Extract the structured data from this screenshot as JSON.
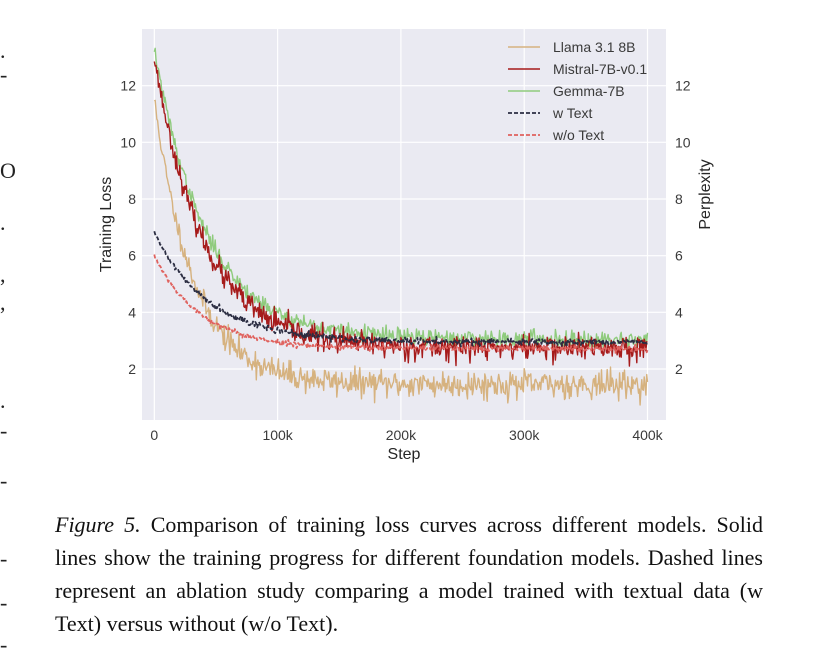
{
  "chart_data": {
    "type": "line",
    "xlabel": "Step",
    "ylabel": "Training Loss",
    "ylabel_right": "Perplexity",
    "xlim": [
      -10000,
      415000
    ],
    "ylim": [
      0.2,
      14.0
    ],
    "xticks": [
      0,
      100000,
      200000,
      300000,
      400000
    ],
    "xtick_labels": [
      "0",
      "100k",
      "200k",
      "300k",
      "400k"
    ],
    "yticks": [
      2,
      4,
      6,
      8,
      10,
      12
    ],
    "ytick_labels": [
      "2",
      "4",
      "6",
      "8",
      "10",
      "12"
    ],
    "grid": true,
    "legend_position": "top-right",
    "series": [
      {
        "name": "Llama 3.1 8B",
        "color": "#d6b27f",
        "dash": "solid",
        "start": 11.5,
        "end": 1.45,
        "tau": 32000,
        "noise": 0.24,
        "seed": 11
      },
      {
        "name": "Mistral-7B-v0.1",
        "color": "#a61b1b",
        "dash": "solid",
        "start": 13.0,
        "end": 2.75,
        "tau": 40000,
        "noise": 0.22,
        "seed": 23
      },
      {
        "name": "Gemma-7B",
        "color": "#8fcb7d",
        "dash": "solid",
        "start": 13.3,
        "end": 3.05,
        "tau": 42000,
        "noise": 0.16,
        "seed": 37
      },
      {
        "name": "w Text",
        "color": "#2b2d42",
        "dash": "dashed",
        "start": 6.8,
        "end": 2.95,
        "tau": 45000,
        "noise": 0.06,
        "seed": 41
      },
      {
        "name": "w/o Text",
        "color": "#e0625e",
        "dash": "dashed",
        "start": 6.0,
        "end": 2.72,
        "tau": 38000,
        "noise": 0.05,
        "seed": 53
      }
    ]
  },
  "caption": {
    "label": "Figure 5.",
    "text": " Comparison of training loss curves across different models. Solid lines show the training progress for different foundation models. Dashed lines represent an ablation study comparing a model trained with textual data (w Text) versus without (w/o Text)."
  },
  "margin_marks": [
    ".",
    "-",
    "O",
    ".",
    ",",
    ",",
    ".",
    "-",
    "-",
    "-",
    "-",
    "-"
  ]
}
